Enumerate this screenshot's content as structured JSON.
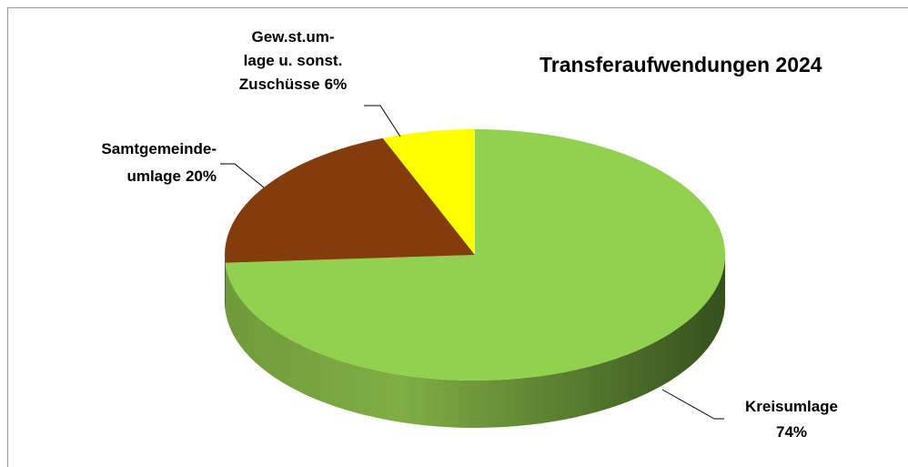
{
  "chart_data": {
    "type": "pie3d",
    "title": "Transferaufwendungen 2024",
    "categories": [
      "Kreisumlage",
      "Samtgemeinde-\numlage",
      "Gew.st.um-\nlage u. sonst.\nZuschüsse"
    ],
    "values": [
      74,
      20,
      6
    ],
    "value_labels": [
      "74%",
      "20%",
      "6%"
    ],
    "colors": [
      "#92d050",
      "#843c0c",
      "#ffff00"
    ]
  }
}
